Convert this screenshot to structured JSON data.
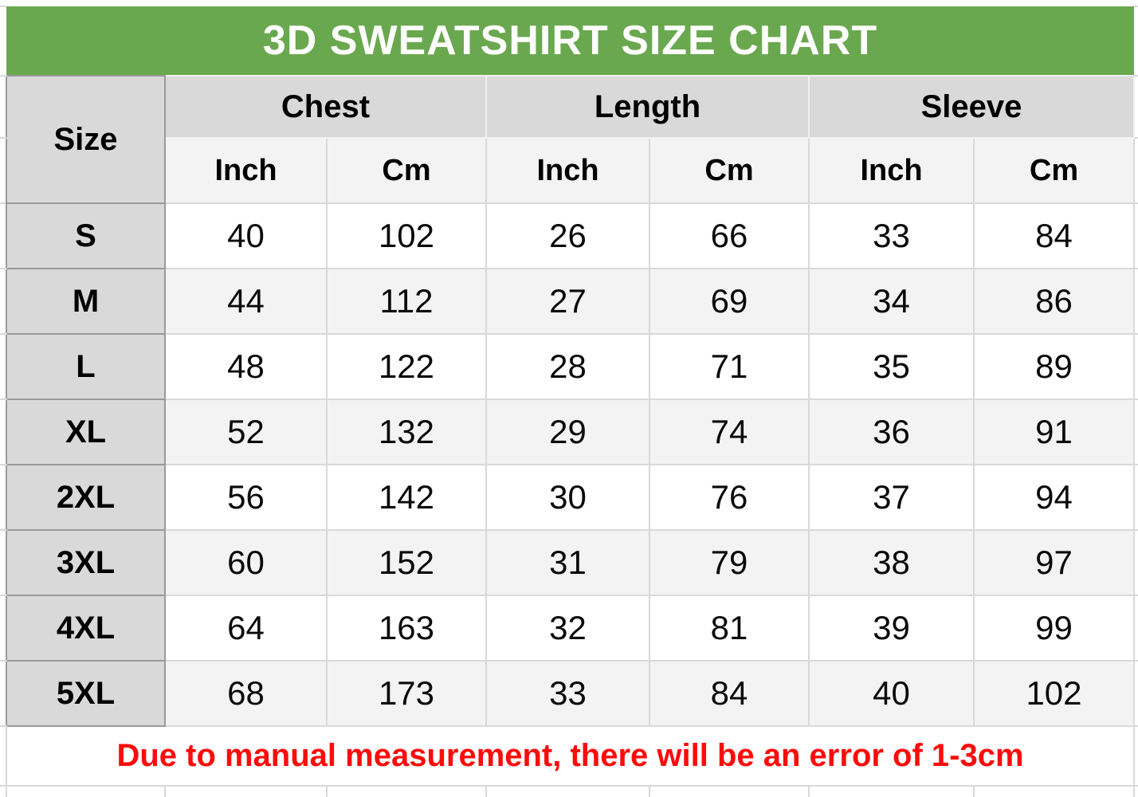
{
  "chart_data": {
    "type": "table",
    "title": "3D SWEATSHIRT SIZE CHART",
    "row_header_label": "Size",
    "column_groups": [
      {
        "label": "Chest",
        "units": [
          "Inch",
          "Cm"
        ]
      },
      {
        "label": "Length",
        "units": [
          "Inch",
          "Cm"
        ]
      },
      {
        "label": "Sleeve",
        "units": [
          "Inch",
          "Cm"
        ]
      }
    ],
    "unit_labels": [
      "Inch",
      "Cm",
      "Inch",
      "Cm",
      "Inch",
      "Cm"
    ],
    "rows": [
      {
        "size": "S",
        "values": [
          40,
          102,
          26,
          66,
          33,
          84
        ]
      },
      {
        "size": "M",
        "values": [
          44,
          112,
          27,
          69,
          34,
          86
        ]
      },
      {
        "size": "L",
        "values": [
          48,
          122,
          28,
          71,
          35,
          89
        ]
      },
      {
        "size": "XL",
        "values": [
          52,
          132,
          29,
          74,
          36,
          91
        ]
      },
      {
        "size": "2XL",
        "values": [
          56,
          142,
          30,
          76,
          37,
          94
        ]
      },
      {
        "size": "3XL",
        "values": [
          60,
          152,
          31,
          79,
          38,
          97
        ]
      },
      {
        "size": "4XL",
        "values": [
          64,
          163,
          32,
          81,
          39,
          99
        ]
      },
      {
        "size": "5XL",
        "values": [
          68,
          173,
          33,
          84,
          40,
          102
        ]
      }
    ],
    "note": "Due to manual measurement, there will be an error of 1-3cm"
  },
  "colors": {
    "banner_green": "#6aa84f",
    "header_gray": "#d9d9d9",
    "subheader_gray": "#f3f3f3",
    "note_red": "#fe0b0b",
    "border_light": "#d9d9d9",
    "border_dark": "#999999"
  }
}
